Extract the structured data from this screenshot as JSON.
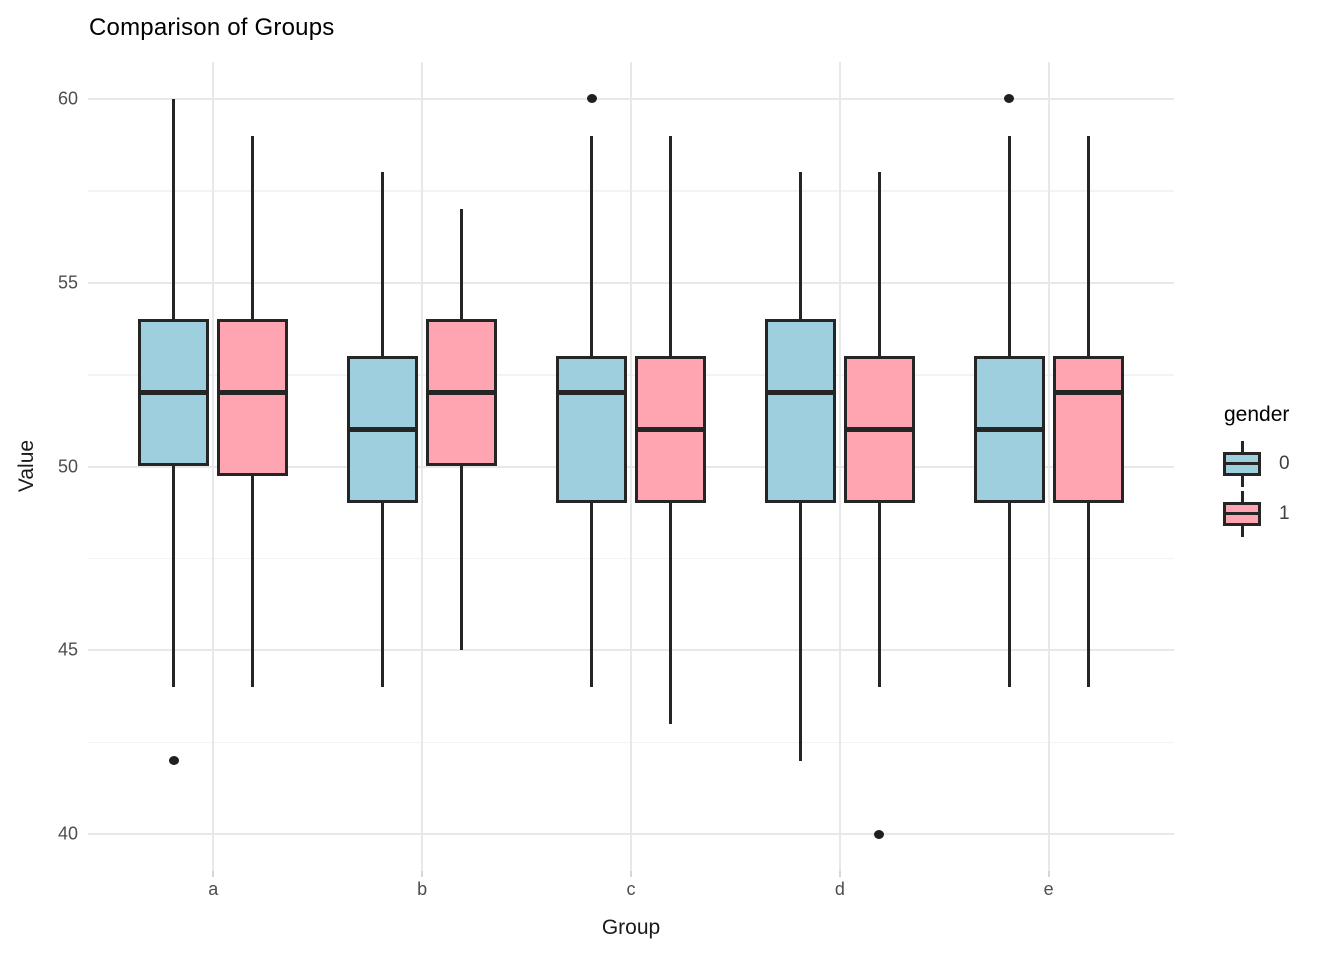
{
  "chart_data": {
    "type": "boxplot",
    "title": "Comparison of Groups",
    "xlabel": "Group",
    "ylabel": "Value",
    "categories": [
      "a",
      "b",
      "c",
      "d",
      "e"
    ],
    "ylim": [
      39,
      61
    ],
    "yticks": [
      40,
      45,
      50,
      55,
      60
    ],
    "yminor_gridlines": [
      42.5,
      47.5,
      52.5,
      57.5
    ],
    "grid": {
      "horizontal_major": true,
      "horizontal_minor": true,
      "vertical_major": true,
      "legend_position": "right"
    },
    "legend": {
      "title": "gender",
      "entries": [
        {
          "label": "0",
          "color": "#9DCFDF"
        },
        {
          "label": "1",
          "color": "#FFA5B2"
        }
      ]
    },
    "colors": {
      "fill_gender0": "#9DCFDF",
      "fill_gender1": "#FFA5B2",
      "box_border": "#252525",
      "median": "#252525",
      "outlier": "#1f1f1f",
      "grid_major": "#e8e8e8",
      "grid_minor": "#f3f3f3",
      "tick_mark": "#d6d6d6",
      "tick_label": "#4d4d4d",
      "axis_title": "#1a1a1a",
      "title": "#000000"
    },
    "series": [
      {
        "name": "0",
        "color": "#9DCFDF",
        "boxes": [
          {
            "category": "a",
            "whisker_low": 44,
            "q1": 50,
            "median": 52,
            "q3": 54,
            "whisker_high": 60,
            "outliers": [
              42
            ]
          },
          {
            "category": "b",
            "whisker_low": 44,
            "q1": 49,
            "median": 51,
            "q3": 53,
            "whisker_high": 58,
            "outliers": []
          },
          {
            "category": "c",
            "whisker_low": 44,
            "q1": 49,
            "median": 52,
            "q3": 53,
            "whisker_high": 59,
            "outliers": [
              60
            ]
          },
          {
            "category": "d",
            "whisker_low": 42,
            "q1": 49,
            "median": 52,
            "q3": 54,
            "whisker_high": 58,
            "outliers": []
          },
          {
            "category": "e",
            "whisker_low": 44,
            "q1": 49,
            "median": 51,
            "q3": 53,
            "whisker_high": 59,
            "outliers": [
              60
            ]
          }
        ]
      },
      {
        "name": "1",
        "color": "#FFA5B2",
        "boxes": [
          {
            "category": "a",
            "whisker_low": 44,
            "q1": 49.75,
            "median": 52,
            "q3": 54,
            "whisker_high": 59,
            "outliers": []
          },
          {
            "category": "b",
            "whisker_low": 45,
            "q1": 50,
            "median": 52,
            "q3": 54,
            "whisker_high": 57,
            "outliers": []
          },
          {
            "category": "c",
            "whisker_low": 43,
            "q1": 49,
            "median": 51,
            "q3": 53,
            "whisker_high": 59,
            "outliers": []
          },
          {
            "category": "d",
            "whisker_low": 44,
            "q1": 49,
            "median": 51,
            "q3": 53,
            "whisker_high": 58,
            "outliers": [
              40
            ]
          },
          {
            "category": "e",
            "whisker_low": 44,
            "q1": 49,
            "median": 52,
            "q3": 53,
            "whisker_high": 59,
            "outliers": []
          }
        ]
      }
    ]
  }
}
